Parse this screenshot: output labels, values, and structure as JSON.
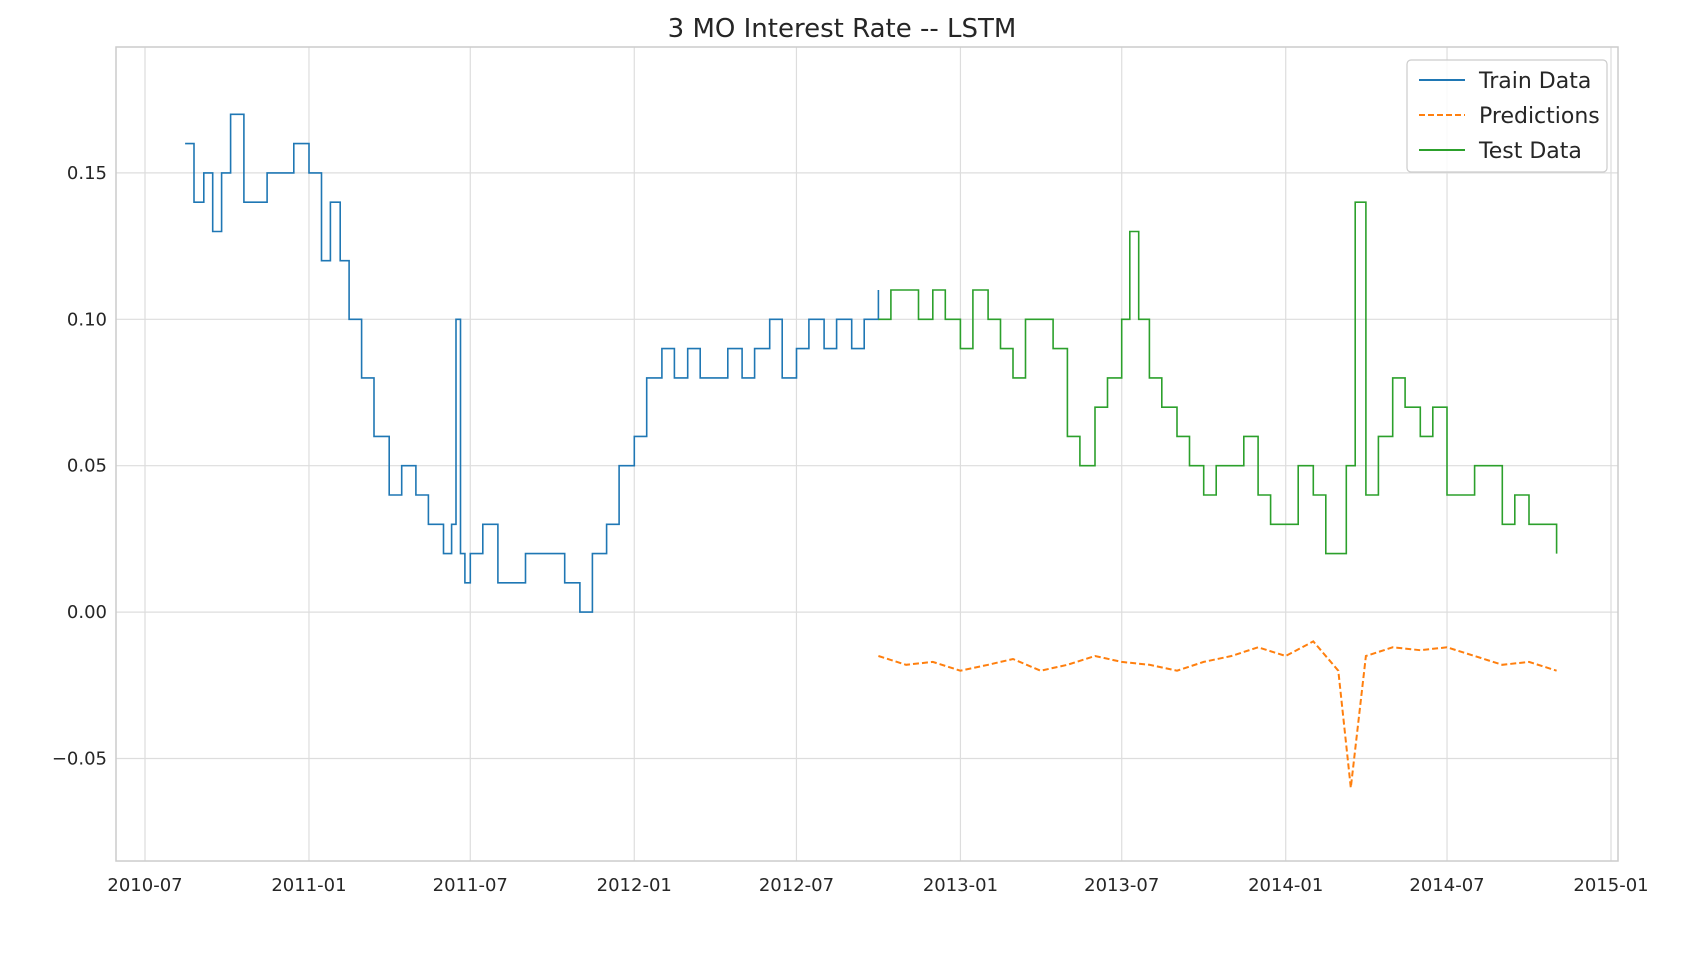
{
  "chart_data": {
    "type": "line",
    "title": "3 MO Interest Rate -- LSTM",
    "xlabel": "",
    "ylabel": "",
    "x_ticks": [
      "2010-07",
      "2011-01",
      "2011-07",
      "2012-01",
      "2012-07",
      "2013-01",
      "2013-07",
      "2014-01",
      "2014-07",
      "2015-01"
    ],
    "y_ticks": [
      "0.15",
      "0.10",
      "0.05",
      "0.00",
      "−0.05"
    ],
    "y_tick_values": [
      0.15,
      0.1,
      0.05,
      0.0,
      -0.05
    ],
    "xlim": [
      "2010-07",
      "2015-01"
    ],
    "ylim": [
      -0.085,
      0.193
    ],
    "grid": true,
    "legend_position": "top-right",
    "series": [
      {
        "name": "Train Data",
        "color": "#1f77b4",
        "style": "solid",
        "x": [
          "2010-08-15",
          "2010-08-25",
          "2010-09-05",
          "2010-09-15",
          "2010-09-25",
          "2010-10-05",
          "2010-10-20",
          "2010-11-01",
          "2010-11-15",
          "2010-12-01",
          "2010-12-15",
          "2011-01-01",
          "2011-01-15",
          "2011-01-25",
          "2011-02-05",
          "2011-02-15",
          "2011-03-01",
          "2011-03-15",
          "2011-04-01",
          "2011-04-15",
          "2011-05-01",
          "2011-05-15",
          "2011-06-01",
          "2011-06-10",
          "2011-06-15",
          "2011-06-20",
          "2011-06-25",
          "2011-07-01",
          "2011-07-15",
          "2011-08-01",
          "2011-08-15",
          "2011-09-01",
          "2011-09-15",
          "2011-10-01",
          "2011-10-15",
          "2011-11-01",
          "2011-11-15",
          "2011-12-01",
          "2011-12-15",
          "2012-01-01",
          "2012-01-15",
          "2012-02-01",
          "2012-02-15",
          "2012-03-01",
          "2012-03-15",
          "2012-04-01",
          "2012-04-15",
          "2012-05-01",
          "2012-05-15",
          "2012-06-01",
          "2012-06-15",
          "2012-07-01",
          "2012-07-15",
          "2012-08-01",
          "2012-08-15",
          "2012-09-01",
          "2012-09-15",
          "2012-10-01"
        ],
        "values": [
          0.16,
          0.14,
          0.15,
          0.13,
          0.15,
          0.17,
          0.14,
          0.14,
          0.15,
          0.15,
          0.16,
          0.15,
          0.12,
          0.14,
          0.12,
          0.1,
          0.08,
          0.06,
          0.04,
          0.05,
          0.04,
          0.03,
          0.02,
          0.03,
          0.1,
          0.02,
          0.01,
          0.02,
          0.03,
          0.01,
          0.01,
          0.02,
          0.02,
          0.02,
          0.01,
          0.0,
          0.02,
          0.03,
          0.05,
          0.06,
          0.08,
          0.09,
          0.08,
          0.09,
          0.08,
          0.08,
          0.09,
          0.08,
          0.09,
          0.1,
          0.08,
          0.09,
          0.1,
          0.09,
          0.1,
          0.09,
          0.1,
          0.11
        ]
      },
      {
        "name": "Predictions",
        "color": "#ff7f0e",
        "style": "dashed",
        "x": [
          "2012-10-01",
          "2012-11-01",
          "2012-12-01",
          "2013-01-01",
          "2013-02-01",
          "2013-03-01",
          "2013-04-01",
          "2013-05-01",
          "2013-06-01",
          "2013-07-01",
          "2013-08-01",
          "2013-09-01",
          "2013-10-01",
          "2013-11-01",
          "2013-12-01",
          "2014-01-01",
          "2014-02-01",
          "2014-03-01",
          "2014-03-15",
          "2014-04-01",
          "2014-05-01",
          "2014-06-01",
          "2014-07-01",
          "2014-08-01",
          "2014-09-01",
          "2014-10-01",
          "2014-11-01"
        ],
        "values": [
          -0.015,
          -0.018,
          -0.017,
          -0.02,
          -0.018,
          -0.016,
          -0.02,
          -0.018,
          -0.015,
          -0.017,
          -0.018,
          -0.02,
          -0.017,
          -0.015,
          -0.012,
          -0.015,
          -0.01,
          -0.02,
          -0.06,
          -0.015,
          -0.012,
          -0.013,
          -0.012,
          -0.015,
          -0.018,
          -0.017,
          -0.02
        ]
      },
      {
        "name": "Test Data",
        "color": "#2ca02c",
        "style": "solid",
        "x": [
          "2012-10-01",
          "2012-10-15",
          "2012-11-01",
          "2012-11-15",
          "2012-12-01",
          "2012-12-15",
          "2013-01-01",
          "2013-01-15",
          "2013-02-01",
          "2013-02-15",
          "2013-03-01",
          "2013-03-15",
          "2013-04-01",
          "2013-04-15",
          "2013-05-01",
          "2013-05-15",
          "2013-06-01",
          "2013-06-15",
          "2013-07-01",
          "2013-07-10",
          "2013-07-20",
          "2013-08-01",
          "2013-08-15",
          "2013-09-01",
          "2013-09-15",
          "2013-10-01",
          "2013-10-15",
          "2013-11-01",
          "2013-11-15",
          "2013-12-01",
          "2013-12-15",
          "2014-01-01",
          "2014-01-15",
          "2014-02-01",
          "2014-02-15",
          "2014-03-01",
          "2014-03-10",
          "2014-03-20",
          "2014-04-01",
          "2014-04-15",
          "2014-05-01",
          "2014-05-15",
          "2014-06-01",
          "2014-06-15",
          "2014-07-01",
          "2014-07-15",
          "2014-08-01",
          "2014-08-15",
          "2014-09-01",
          "2014-09-15",
          "2014-10-01",
          "2014-10-15",
          "2014-11-01"
        ],
        "values": [
          0.1,
          0.11,
          0.11,
          0.1,
          0.11,
          0.1,
          0.09,
          0.11,
          0.1,
          0.09,
          0.08,
          0.1,
          0.1,
          0.09,
          0.06,
          0.05,
          0.07,
          0.08,
          0.1,
          0.13,
          0.1,
          0.08,
          0.07,
          0.06,
          0.05,
          0.04,
          0.05,
          0.05,
          0.06,
          0.04,
          0.03,
          0.03,
          0.05,
          0.04,
          0.02,
          0.02,
          0.05,
          0.14,
          0.04,
          0.06,
          0.08,
          0.07,
          0.06,
          0.07,
          0.04,
          0.04,
          0.05,
          0.05,
          0.03,
          0.04,
          0.03,
          0.03,
          0.02
        ]
      }
    ]
  }
}
